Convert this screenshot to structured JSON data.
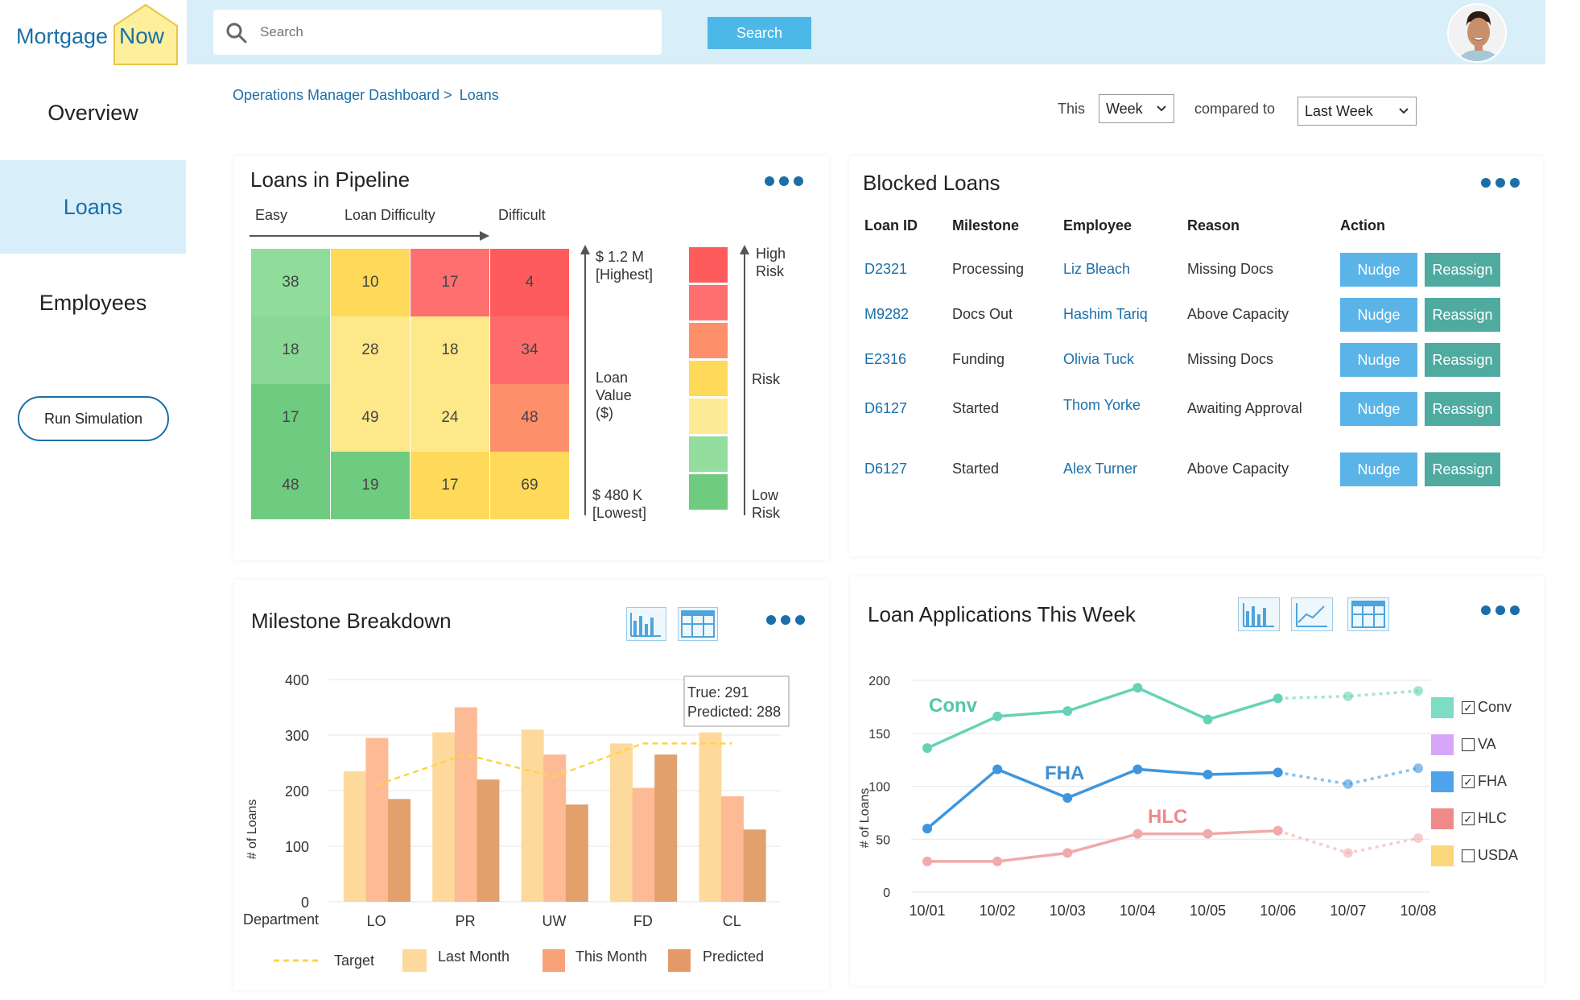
{
  "brand": {
    "name": "Mortgage",
    "accent_word": "Now"
  },
  "sidebar": {
    "items": [
      {
        "label": "Overview"
      },
      {
        "label": "Loans"
      },
      {
        "label": "Employees"
      }
    ],
    "run_simulation_label": "Run Simulation"
  },
  "search": {
    "placeholder": "Search",
    "button_label": "Search"
  },
  "breadcrumb": {
    "parent": "Operations Manager Dashboard >",
    "current": "Loans"
  },
  "filters": {
    "this_label": "This",
    "period_value": "Week",
    "compared_label": "compared to",
    "compare_value": "Last Week"
  },
  "pipeline": {
    "title": "Loans in Pipeline",
    "difficulty_easy": "Easy",
    "difficulty_title": "Loan Difficulty",
    "difficulty_hard": "Difficult",
    "value_high": "$ 1.2 M",
    "value_high_note": "[Highest]",
    "value_title_1": "Loan",
    "value_title_2": "Value",
    "value_title_3": "($)",
    "value_low": "$ 480 K",
    "value_low_note": "[Lowest]",
    "risk_high_1": "High",
    "risk_high_2": "Risk",
    "risk_mid": "Risk",
    "risk_low_1": "Low",
    "risk_low_2": "Risk",
    "grid": [
      [
        {
          "v": "38",
          "c": "#8fdc9b"
        },
        {
          "v": "10",
          "c": "#fed95a"
        },
        {
          "v": "17",
          "c": "#fe6f6f"
        },
        {
          "v": "4",
          "c": "#fe5c5c"
        }
      ],
      [
        {
          "v": "18",
          "c": "#89d896"
        },
        {
          "v": "28",
          "c": "#fee98a"
        },
        {
          "v": "18",
          "c": "#fee98a"
        },
        {
          "v": "34",
          "c": "#fe6b6b"
        }
      ],
      [
        {
          "v": "17",
          "c": "#6fcb80"
        },
        {
          "v": "49",
          "c": "#fee98a"
        },
        {
          "v": "24",
          "c": "#fee98a"
        },
        {
          "v": "48",
          "c": "#fe8f6b"
        }
      ],
      [
        {
          "v": "48",
          "c": "#6fcb80"
        },
        {
          "v": "19",
          "c": "#6fcb80"
        },
        {
          "v": "17",
          "c": "#fed95a"
        },
        {
          "v": "69",
          "c": "#fed95a"
        }
      ]
    ],
    "risk_scale_colors": [
      "#fe5c5c",
      "#fe7070",
      "#fe8f6b",
      "#fed95a",
      "#feeb95",
      "#93dd9e",
      "#6fcb80"
    ]
  },
  "blocked": {
    "title": "Blocked Loans",
    "headers": [
      "Loan ID",
      "Milestone",
      "Employee",
      "Reason",
      "Action"
    ],
    "nudge_label": "Nudge",
    "reassign_label": "Reassign",
    "rows": [
      {
        "id": "D2321",
        "milestone": "Processing",
        "employee": "Liz Bleach",
        "reason": "Missing Docs"
      },
      {
        "id": "M9282",
        "milestone": "Docs Out",
        "employee": "Hashim Tariq",
        "reason": "Above Capacity"
      },
      {
        "id": "E2316",
        "milestone": "Funding",
        "employee": "Olivia Tuck",
        "reason": "Missing Docs"
      },
      {
        "id": "D6127",
        "milestone": "Started",
        "employee": "Thom Yorke",
        "reason": "Awaiting Approval"
      },
      {
        "id": "D6127",
        "milestone": "Started",
        "employee": "Alex Turner",
        "reason": "Above Capacity"
      }
    ]
  },
  "milestone": {
    "title": "Milestone Breakdown",
    "tooltip_true": "True: 291",
    "tooltip_pred": "Predicted: 288",
    "legend": {
      "target": "Target",
      "last_month": "Last Month",
      "this_month": "This Month",
      "predicted": "Predicted"
    }
  },
  "applications": {
    "title": "Loan Applications This Week",
    "legend": [
      {
        "name": "Conv",
        "color": "#7cdcc4",
        "checked": true
      },
      {
        "name": "VA",
        "color": "#d6a6f8",
        "checked": false
      },
      {
        "name": "FHA",
        "color": "#4ea4ec",
        "checked": true
      },
      {
        "name": "HLC",
        "color": "#ee8a8a",
        "checked": true
      },
      {
        "name": "USDA",
        "color": "#fbd67a",
        "checked": false
      }
    ]
  },
  "chart_data": [
    {
      "type": "bar",
      "title": "Milestone Breakdown",
      "xlabel": "Department",
      "ylabel": "# of Loans",
      "ylim": [
        0,
        400
      ],
      "yticks": [
        0,
        100,
        200,
        300,
        400
      ],
      "categories": [
        "LO",
        "PR",
        "UW",
        "FD",
        "CL"
      ],
      "series": [
        {
          "name": "Last Month",
          "color": "#fdd99b",
          "values": [
            235,
            305,
            310,
            285,
            305
          ]
        },
        {
          "name": "This Month",
          "color": "#fdbb95",
          "values": [
            295,
            350,
            265,
            205,
            190
          ]
        },
        {
          "name": "Predicted",
          "color": "#e1a06c",
          "values": [
            185,
            220,
            175,
            265,
            130
          ]
        }
      ],
      "target": {
        "name": "Target",
        "color": "#fed34a",
        "values": [
          210,
          265,
          225,
          285,
          285
        ]
      }
    },
    {
      "type": "line",
      "title": "Loan Applications This Week",
      "ylabel": "# of Loans",
      "ylim": [
        0,
        200
      ],
      "yticks": [
        0,
        50,
        100,
        150,
        200
      ],
      "x": [
        "10/01",
        "10/02",
        "10/03",
        "10/04",
        "10/05",
        "10/06",
        "10/07",
        "10/08"
      ],
      "actual_through_index": 5,
      "series": [
        {
          "name": "Conv",
          "color": "#66d2b6",
          "values": [
            136,
            166,
            171,
            193,
            163,
            183,
            185,
            190
          ]
        },
        {
          "name": "FHA",
          "color": "#3f96dd",
          "values": [
            60,
            116,
            89,
            116,
            111,
            113,
            102,
            117
          ]
        },
        {
          "name": "HLC",
          "color": "#f0aaaa",
          "values": [
            29,
            29,
            37,
            55,
            55,
            58,
            37,
            51
          ]
        }
      ]
    }
  ]
}
